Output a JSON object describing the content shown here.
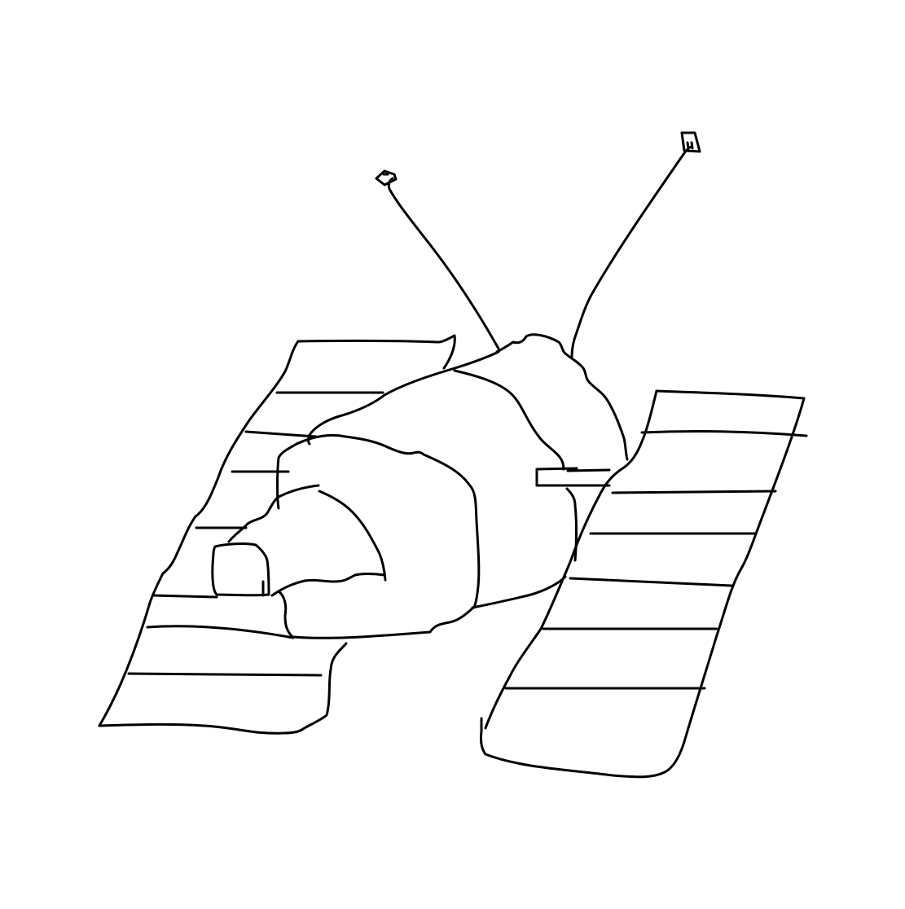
{
  "drawing": {
    "subject": "satellite-sketch",
    "background_color": "#ffffff",
    "stroke_color": "#000000"
  }
}
